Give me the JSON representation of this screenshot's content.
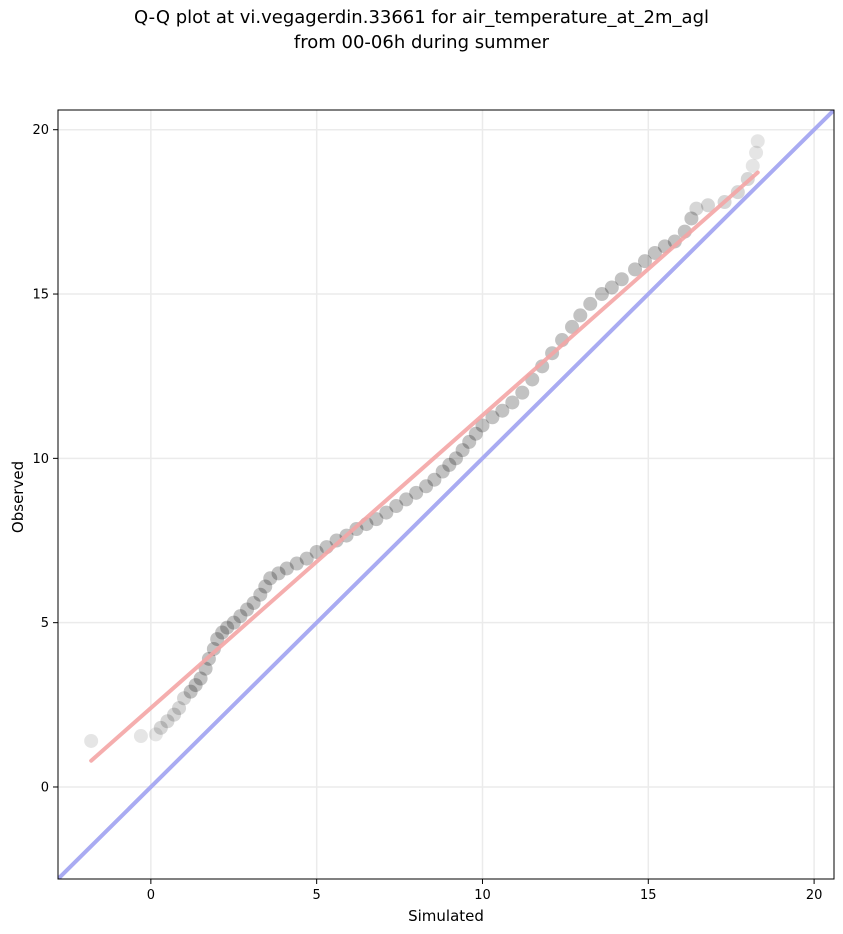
{
  "chart_data": {
    "type": "scatter",
    "title_line1": "Q-Q plot at vi.vegagerdin.33661 for air_temperature_at_2m_agl",
    "title_line2": "from 00-06h during summer",
    "xlabel": "Simulated",
    "ylabel": "Observed",
    "xlim": [
      -2.8,
      20.6
    ],
    "ylim": [
      -2.8,
      20.6
    ],
    "xticks": [
      0,
      5,
      10,
      15,
      20
    ],
    "yticks": [
      0,
      5,
      10,
      15,
      20
    ],
    "grid": true,
    "colors": {
      "points": "#000000",
      "fit_line": "#f4a6a6",
      "identity_line": "#a9abf2",
      "grid": "#ebebeb"
    },
    "fit_line": {
      "x": [
        -1.8,
        18.3
      ],
      "y": [
        0.8,
        18.7
      ]
    },
    "identity_line": {
      "x": [
        -2.8,
        20.6
      ],
      "y": [
        -2.8,
        20.6
      ]
    },
    "points": [
      [
        -1.8,
        1.4
      ],
      [
        -0.3,
        1.55
      ],
      [
        0.15,
        1.6
      ],
      [
        0.3,
        1.8
      ],
      [
        0.5,
        2.0
      ],
      [
        0.7,
        2.2
      ],
      [
        0.85,
        2.4
      ],
      [
        1.0,
        2.7
      ],
      [
        1.2,
        2.9
      ],
      [
        1.35,
        3.1
      ],
      [
        1.5,
        3.3
      ],
      [
        1.65,
        3.6
      ],
      [
        1.75,
        3.9
      ],
      [
        1.9,
        4.2
      ],
      [
        2.0,
        4.5
      ],
      [
        2.15,
        4.7
      ],
      [
        2.3,
        4.85
      ],
      [
        2.5,
        5.0
      ],
      [
        2.7,
        5.2
      ],
      [
        2.9,
        5.4
      ],
      [
        3.1,
        5.6
      ],
      [
        3.3,
        5.85
      ],
      [
        3.45,
        6.1
      ],
      [
        3.6,
        6.35
      ],
      [
        3.85,
        6.5
      ],
      [
        4.1,
        6.65
      ],
      [
        4.4,
        6.8
      ],
      [
        4.7,
        6.95
      ],
      [
        5.0,
        7.15
      ],
      [
        5.3,
        7.3
      ],
      [
        5.6,
        7.5
      ],
      [
        5.9,
        7.65
      ],
      [
        6.2,
        7.85
      ],
      [
        6.5,
        8.0
      ],
      [
        6.8,
        8.15
      ],
      [
        7.1,
        8.35
      ],
      [
        7.4,
        8.55
      ],
      [
        7.7,
        8.75
      ],
      [
        8.0,
        8.95
      ],
      [
        8.3,
        9.15
      ],
      [
        8.55,
        9.35
      ],
      [
        8.8,
        9.6
      ],
      [
        9.0,
        9.8
      ],
      [
        9.2,
        10.0
      ],
      [
        9.4,
        10.25
      ],
      [
        9.6,
        10.5
      ],
      [
        9.8,
        10.75
      ],
      [
        10.0,
        11.0
      ],
      [
        10.3,
        11.25
      ],
      [
        10.6,
        11.45
      ],
      [
        10.9,
        11.7
      ],
      [
        11.2,
        12.0
      ],
      [
        11.5,
        12.4
      ],
      [
        11.8,
        12.8
      ],
      [
        12.1,
        13.2
      ],
      [
        12.4,
        13.6
      ],
      [
        12.7,
        14.0
      ],
      [
        12.95,
        14.35
      ],
      [
        13.25,
        14.7
      ],
      [
        13.6,
        15.0
      ],
      [
        13.9,
        15.2
      ],
      [
        14.2,
        15.45
      ],
      [
        14.6,
        15.75
      ],
      [
        14.9,
        16.0
      ],
      [
        15.2,
        16.25
      ],
      [
        15.5,
        16.45
      ],
      [
        15.8,
        16.6
      ],
      [
        16.1,
        16.9
      ],
      [
        16.3,
        17.3
      ],
      [
        16.45,
        17.6
      ],
      [
        16.8,
        17.7
      ],
      [
        17.3,
        17.8
      ],
      [
        17.7,
        18.1
      ],
      [
        18.0,
        18.5
      ],
      [
        18.15,
        18.9
      ],
      [
        18.25,
        19.3
      ],
      [
        18.3,
        19.65
      ]
    ]
  }
}
